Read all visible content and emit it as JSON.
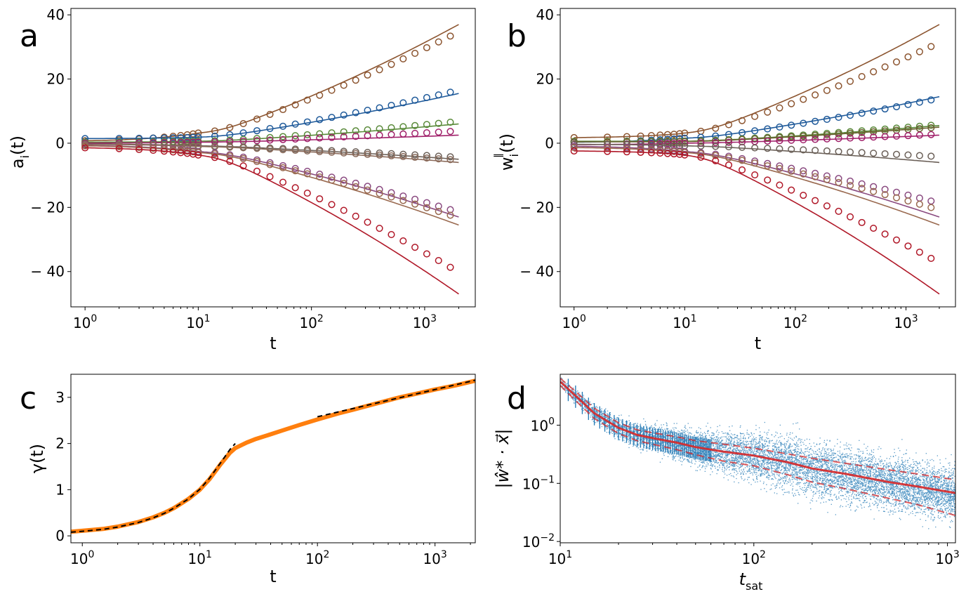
{
  "chart_data": [
    {
      "panel": "a",
      "type": "line",
      "xscale": "log",
      "xlim": [
        0.75,
        2800
      ],
      "ylim": [
        -51,
        42
      ],
      "xlabel": "t",
      "ylabel_main": "a",
      "ylabel_sub": "i",
      "ylabel_tail": "(t)",
      "yticks": [
        40,
        20,
        0,
        -20,
        -40
      ],
      "ytick_labels": [
        "40",
        "20",
        "0",
        "− 20",
        "− 40"
      ],
      "xticks": [
        1,
        10,
        100,
        1000
      ],
      "xtick_base": "10",
      "xtick_exps": [
        "0",
        "1",
        "2",
        "3"
      ],
      "curve_model": "v = a0 + (ainf - a0) * (1 - exp(-t/10)) + rate*log10(t) [fits]; markers are simulation",
      "series": [
        {
          "name": "brown-up",
          "color": "#8c5530",
          "start": 0.5,
          "fit_end": 37.0,
          "mark_end": 34.7,
          "at10": 3.0
        },
        {
          "name": "blue",
          "color": "#1f5a9a",
          "start": 1.4,
          "fit_end": 15.5,
          "mark_end": 16.5,
          "at10": 1.8
        },
        {
          "name": "green",
          "color": "#5a8a3a",
          "start": 0.3,
          "fit_end": 6.0,
          "mark_end": 6.8,
          "at10": 0.6
        },
        {
          "name": "magenta",
          "color": "#a0206a",
          "start": 0.0,
          "fit_end": 2.5,
          "mark_end": 3.8,
          "at10": 0.3
        },
        {
          "name": "gray-brown",
          "color": "#6b6058",
          "start": -0.2,
          "fit_end": -5.0,
          "mark_end": -4.4,
          "at10": -0.8
        },
        {
          "name": "taupe",
          "color": "#8a6a5a",
          "start": -0.3,
          "fit_end": -6.0,
          "mark_end": -5.3,
          "at10": -1.0
        },
        {
          "name": "purple",
          "color": "#8a4a80",
          "start": -0.5,
          "fit_end": -23.0,
          "mark_end": -21.5,
          "at10": -2.5
        },
        {
          "name": "light-brown",
          "color": "#9a6a50",
          "start": -0.6,
          "fit_end": -25.5,
          "mark_end": -23.3,
          "at10": -2.8
        },
        {
          "name": "red",
          "color": "#b01828",
          "start": -1.2,
          "fit_end": -47.0,
          "mark_end": -40.2,
          "at10": -3.5
        }
      ]
    },
    {
      "panel": "b",
      "type": "line",
      "xscale": "log",
      "xlim": [
        0.75,
        2800
      ],
      "ylim": [
        -51,
        42
      ],
      "xlabel": "t",
      "ylabel_main": "w",
      "ylabel_sub": "i",
      "ylabel_sup": "∥",
      "ylabel_tail": "(t)",
      "yticks": [
        40,
        20,
        0,
        -20,
        -40
      ],
      "ytick_labels": [
        "40",
        "20",
        "0",
        "− 20",
        "− 40"
      ],
      "xticks": [
        1,
        10,
        100,
        1000
      ],
      "xtick_base": "10",
      "xtick_exps": [
        "0",
        "1",
        "2",
        "3"
      ],
      "series": [
        {
          "name": "brown-up",
          "color": "#8c5530",
          "start": 1.6,
          "fit_end": 37.0,
          "mark_end": 31.3,
          "at10": 3.0
        },
        {
          "name": "blue",
          "color": "#1f5a9a",
          "start": 0.2,
          "fit_end": 14.5,
          "mark_end": 14.0,
          "at10": 1.5
        },
        {
          "name": "green",
          "color": "#5a8a3a",
          "start": 0.6,
          "fit_end": 5.5,
          "mark_end": 5.8,
          "at10": 0.6
        },
        {
          "name": "olive",
          "color": "#6a6030",
          "start": 0.4,
          "fit_end": 5.0,
          "mark_end": 5.0,
          "at10": 0.5
        },
        {
          "name": "magenta",
          "color": "#a0206a",
          "start": -0.5,
          "fit_end": 2.5,
          "mark_end": 2.8,
          "at10": 0.0
        },
        {
          "name": "gray-brown",
          "color": "#6b6058",
          "start": -0.3,
          "fit_end": -6.0,
          "mark_end": -4.2,
          "at10": -0.8
        },
        {
          "name": "purple",
          "color": "#8a4a80",
          "start": -0.8,
          "fit_end": -23.0,
          "mark_end": -18.7,
          "at10": -2.5
        },
        {
          "name": "light-brown",
          "color": "#9a6a50",
          "start": -1.2,
          "fit_end": -25.5,
          "mark_end": -20.8,
          "at10": -2.8
        },
        {
          "name": "red",
          "color": "#b01828",
          "start": -2.3,
          "fit_end": -47.0,
          "mark_end": -37.3,
          "at10": -3.5
        }
      ]
    },
    {
      "panel": "c",
      "type": "line",
      "xscale": "log",
      "xlim": [
        0.8,
        2200
      ],
      "ylim": [
        -0.15,
        3.5
      ],
      "xlabel": "t",
      "ylabel": "γ(t)",
      "yticks": [
        0,
        1,
        2,
        3
      ],
      "ytick_labels": [
        "0",
        "1",
        "2",
        "3"
      ],
      "xticks": [
        1,
        10,
        100,
        1000
      ],
      "xtick_base": "10",
      "xtick_exps": [
        "0",
        "1",
        "2",
        "3"
      ],
      "series": [
        {
          "name": "gamma",
          "color": "#ff7f0e",
          "x": [
            0.8,
            1,
            1.5,
            2,
            3,
            4,
            5,
            6,
            8,
            10,
            12,
            15,
            18,
            20,
            25,
            30,
            40,
            50,
            70,
            100,
            150,
            200,
            300,
            500,
            700,
            1000,
            1500,
            2200
          ],
          "y": [
            0.09,
            0.11,
            0.15,
            0.2,
            0.3,
            0.4,
            0.5,
            0.6,
            0.8,
            1.0,
            1.22,
            1.55,
            1.8,
            1.9,
            2.02,
            2.1,
            2.2,
            2.28,
            2.4,
            2.52,
            2.65,
            2.73,
            2.85,
            3.0,
            3.08,
            3.17,
            3.26,
            3.36
          ]
        },
        {
          "name": "early-fit",
          "color": "#000000",
          "dashed": true,
          "x": [
            0.8,
            1,
            1.5,
            2,
            3,
            4,
            5,
            6,
            8,
            10,
            12,
            15,
            18,
            20
          ],
          "y": [
            0.08,
            0.1,
            0.14,
            0.19,
            0.29,
            0.39,
            0.49,
            0.6,
            0.8,
            1.01,
            1.24,
            1.58,
            1.87,
            2.0
          ]
        },
        {
          "name": "late-fit",
          "color": "#000000",
          "dashed": true,
          "x": [
            100,
            2200
          ],
          "y": [
            2.58,
            3.37
          ]
        }
      ]
    },
    {
      "panel": "d",
      "type": "scatter",
      "xscale": "log",
      "yscale": "log",
      "xlim": [
        10,
        1100
      ],
      "ylim": [
        0.0095,
        7.5
      ],
      "xlabel_main": "t",
      "xlabel_sub": "sat",
      "ylabel": "|ŵ* · x⃗|",
      "yticks": [
        1,
        0.1,
        0.01
      ],
      "ytick_base": "10",
      "ytick_exps": [
        "0",
        "−1",
        "−2"
      ],
      "xticks": [
        10,
        100,
        1000
      ],
      "xtick_base": "10",
      "xtick_exps": [
        "1",
        "2",
        "3"
      ],
      "scatter_color": "#1f77b4",
      "fit_color": "#d62728",
      "fit_model": "mean = 5.6*(10/t)^0.88 for t<25 blending to 0.31*(100/t)^0.53; bands at ×1.55 and ×0.45 beyond t≈60",
      "series": [
        {
          "name": "samples",
          "count": 9000,
          "density": "dense near small t, spreading with t"
        },
        {
          "name": "mean-fit",
          "x": [
            10,
            12,
            15,
            20,
            25,
            30,
            40,
            50,
            70,
            100,
            150,
            200,
            300,
            500,
            700,
            1100
          ],
          "y": [
            5.6,
            3.2,
            1.6,
            0.9,
            0.68,
            0.6,
            0.5,
            0.42,
            0.35,
            0.3,
            0.23,
            0.18,
            0.145,
            0.105,
            0.088,
            0.068
          ]
        },
        {
          "name": "upper-band",
          "x": [
            10,
            12,
            15,
            20,
            25,
            30,
            40,
            50,
            70,
            100,
            150,
            200,
            300,
            500,
            700,
            1100
          ],
          "y": [
            6.4,
            3.8,
            1.95,
            1.1,
            0.83,
            0.74,
            0.63,
            0.54,
            0.47,
            0.4,
            0.32,
            0.27,
            0.22,
            0.17,
            0.145,
            0.115
          ]
        },
        {
          "name": "lower-band",
          "x": [
            10,
            12,
            15,
            20,
            25,
            30,
            40,
            50,
            70,
            100,
            150,
            200,
            300,
            500,
            700,
            1100
          ],
          "y": [
            4.8,
            2.65,
            1.3,
            0.72,
            0.54,
            0.47,
            0.38,
            0.31,
            0.24,
            0.2,
            0.14,
            0.105,
            0.08,
            0.055,
            0.043,
            0.028
          ]
        }
      ]
    }
  ]
}
